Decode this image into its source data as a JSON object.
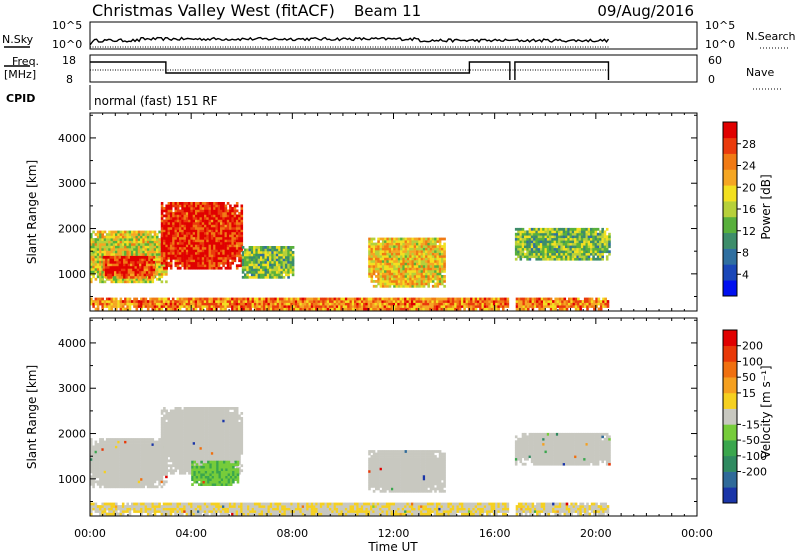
{
  "header": {
    "title": "Christmas Valley West (fitACF)",
    "beam": "Beam 11",
    "date": "09/Aug/2016"
  },
  "status_panels": {
    "nsky_label": "N.Sky",
    "nsearch_label": "N.Search",
    "noise_ticks_left": [
      "10^5",
      "10^0"
    ],
    "noise_ticks_right": [
      "10^5",
      "10^0"
    ],
    "freq_label": "Freq.",
    "freq_unit": "[MHz]",
    "freq_ticks": [
      "18",
      "8"
    ],
    "nave_label": "Nave",
    "nave_ticks": [
      "60",
      "0"
    ],
    "cpid_label": "CPID",
    "cpid_value": "normal (fast) 151 RF"
  },
  "axes": {
    "ylabel": "Slant Range [km]",
    "yticks": [
      "1000",
      "2000",
      "3000",
      "4000"
    ],
    "xticks": [
      "00:00",
      "04:00",
      "08:00",
      "12:00",
      "16:00",
      "20:00",
      "00:00"
    ],
    "xlabel": "Time UT"
  },
  "power_colorbar": {
    "label": "Power [dB]",
    "ticks": [
      "4",
      "8",
      "12",
      "16",
      "20",
      "24",
      "28"
    ],
    "colors": [
      "#0010f0",
      "#1a47b8",
      "#2f6fa0",
      "#3d8d6a",
      "#58b03c",
      "#b6d03a",
      "#f3e020",
      "#f5a623",
      "#f07a14",
      "#ea3a0c",
      "#e00000"
    ]
  },
  "velocity_colorbar": {
    "label": "Velocity [m s⁻¹]",
    "ticks": [
      "200",
      "100",
      "50",
      "15",
      "-15",
      "-50",
      "-100",
      "-200"
    ],
    "colors": [
      "#1a35a8",
      "#2f6a99",
      "#2f8a60",
      "#3aa64d",
      "#76cc3a",
      "#c8c8c0",
      "#f5d020",
      "#f5a020",
      "#f07010",
      "#e83808",
      "#e00000"
    ]
  },
  "chart_data": [
    {
      "type": "heatmap",
      "title": "Power",
      "xlabel": "Time UT",
      "ylabel": "Slant Range [km]",
      "xlim": [
        0,
        24
      ],
      "ylim": [
        180,
        4550
      ],
      "colorbar_label": "Power [dB]",
      "colorbar_range": [
        0,
        32
      ],
      "regions": [
        {
          "t0": 0.0,
          "t1": 3.0,
          "r0": 800,
          "r1": 1950,
          "value": 18
        },
        {
          "t0": 0.5,
          "t1": 2.5,
          "r0": 900,
          "r1": 1350,
          "value": 28
        },
        {
          "t0": 2.8,
          "t1": 6.0,
          "r0": 1100,
          "r1": 2550,
          "value": 29
        },
        {
          "t0": 6.0,
          "t1": 8.0,
          "r0": 900,
          "r1": 1600,
          "value": 14
        },
        {
          "t0": 11.0,
          "t1": 14.0,
          "r0": 700,
          "r1": 1800,
          "value": 20
        },
        {
          "t0": 16.8,
          "t1": 20.5,
          "r0": 1300,
          "r1": 2000,
          "value": 14
        },
        {
          "t0": 0.0,
          "t1": 20.5,
          "r0": 200,
          "r1": 450,
          "value": 24
        }
      ]
    },
    {
      "type": "heatmap",
      "title": "Velocity",
      "xlabel": "Time UT",
      "ylabel": "Slant Range [km]",
      "xlim": [
        0,
        24
      ],
      "ylim": [
        180,
        4550
      ],
      "colorbar_label": "Velocity [m s⁻¹]",
      "colorbar_range": [
        -250,
        250
      ],
      "regions": [
        {
          "t0": 0.0,
          "t1": 3.0,
          "r0": 800,
          "r1": 1900,
          "value": 0
        },
        {
          "t0": 2.8,
          "t1": 6.0,
          "r0": 1100,
          "r1": 2550,
          "value": 0
        },
        {
          "t0": 4.0,
          "t1": 5.8,
          "r0": 850,
          "r1": 1350,
          "value": -60
        },
        {
          "t0": 11.0,
          "t1": 14.0,
          "r0": 700,
          "r1": 1600,
          "value": 0
        },
        {
          "t0": 16.8,
          "t1": 20.5,
          "r0": 1300,
          "r1": 2000,
          "value": 0
        },
        {
          "t0": 0.0,
          "t1": 20.5,
          "r0": 200,
          "r1": 450,
          "value": 20
        }
      ]
    }
  ]
}
